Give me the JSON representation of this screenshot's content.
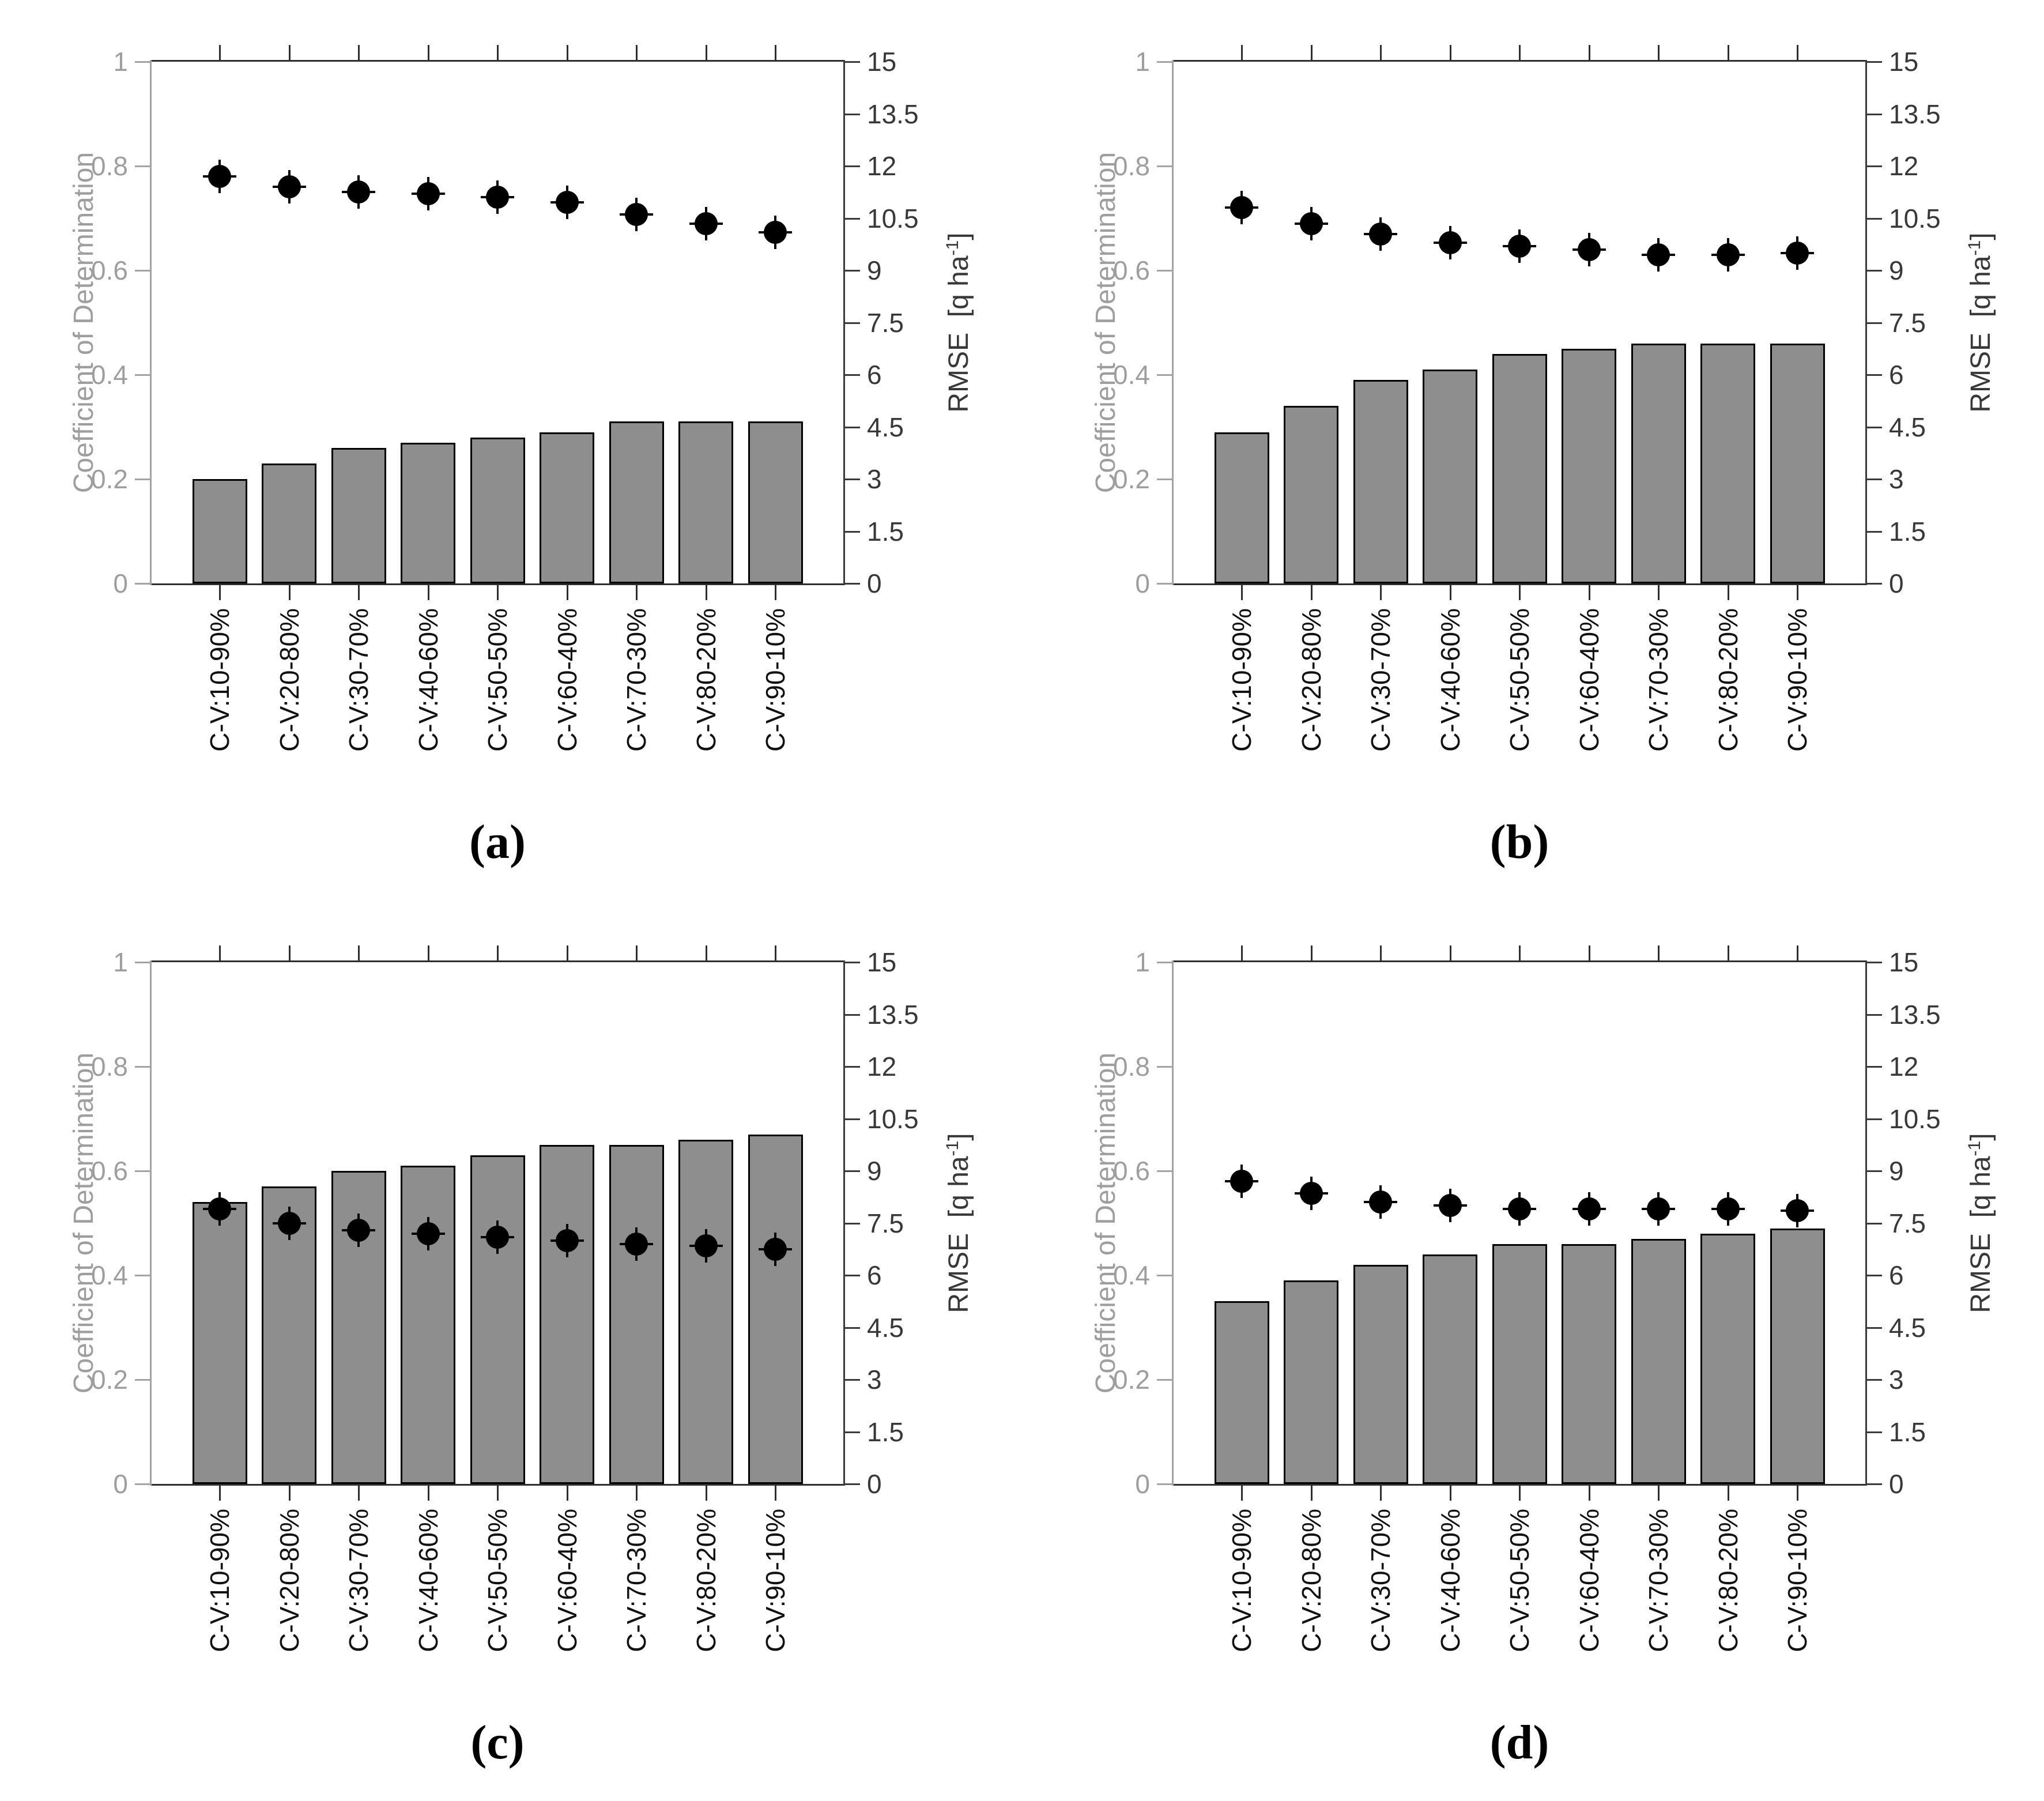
{
  "axes": {
    "left_label": "Coefficient of Determination",
    "right_label": {
      "prefix": "RMSE  [q ha",
      "sup": "-1",
      "suffix": "]"
    },
    "left_ticks": [
      "0",
      "0.2",
      "0.4",
      "0.6",
      "0.8",
      "1"
    ],
    "right_ticks": [
      "0",
      "1.5",
      "3",
      "4.5",
      "6",
      "7.5",
      "9",
      "10.5",
      "12",
      "13.5",
      "15"
    ],
    "left_ylim": [
      0,
      1
    ],
    "right_ylim": [
      0,
      15
    ],
    "grid": "off",
    "legend": "none"
  },
  "colors": {
    "bar_fill": "#8e8e8e",
    "bar_edge": "#000000",
    "marker": "#000000",
    "left_axis_color": "#a3a3a3",
    "left_text": "#9e9e9e",
    "right_axis_color": "#3a3a3a",
    "right_text": "#383838",
    "x_text": "#111111",
    "frame": "#2e2e2e"
  },
  "chart_data": [
    {
      "panel": "a",
      "caption": "(a)",
      "type": "bar",
      "categories": [
        "C-V:10-90%",
        "C-V:20-80%",
        "C-V:30-70%",
        "C-V:40-60%",
        "C-V:50-50%",
        "C-V:60-40%",
        "C-V:70-30%",
        "C-V:80-20%",
        "C-V:90-10%"
      ],
      "series": [
        {
          "name": "Coefficient of Determination",
          "type": "bar",
          "axis": "left",
          "values": [
            0.2,
            0.23,
            0.26,
            0.27,
            0.28,
            0.29,
            0.31,
            0.31,
            0.31
          ]
        },
        {
          "name": "RMSE",
          "type": "scatter",
          "axis": "right",
          "values": [
            11.7,
            11.4,
            11.25,
            11.2,
            11.1,
            10.95,
            10.6,
            10.35,
            10.1
          ]
        }
      ],
      "left_ylim": [
        0,
        1
      ],
      "right_ylim": [
        0,
        15
      ],
      "xlabel": "",
      "ylabel_left": "Coefficient of Determination",
      "ylabel_right": "RMSE  [q ha⁻¹]"
    },
    {
      "panel": "b",
      "caption": "(b)",
      "type": "bar",
      "categories": [
        "C-V:10-90%",
        "C-V:20-80%",
        "C-V:30-70%",
        "C-V:40-60%",
        "C-V:50-50%",
        "C-V:60-40%",
        "C-V:70-30%",
        "C-V:80-20%",
        "C-V:90-10%"
      ],
      "series": [
        {
          "name": "Coefficient of Determination",
          "type": "bar",
          "axis": "left",
          "values": [
            0.29,
            0.34,
            0.39,
            0.41,
            0.44,
            0.45,
            0.46,
            0.46,
            0.46
          ]
        },
        {
          "name": "RMSE",
          "type": "scatter",
          "axis": "right",
          "values": [
            10.8,
            10.35,
            10.05,
            9.8,
            9.7,
            9.6,
            9.45,
            9.45,
            9.5
          ]
        }
      ],
      "left_ylim": [
        0,
        1
      ],
      "right_ylim": [
        0,
        15
      ],
      "xlabel": "",
      "ylabel_left": "Coefficient of Determination",
      "ylabel_right": "RMSE  [q ha⁻¹]"
    },
    {
      "panel": "c",
      "caption": "(c)",
      "type": "bar",
      "categories": [
        "C-V:10-90%",
        "C-V:20-80%",
        "C-V:30-70%",
        "C-V:40-60%",
        "C-V:50-50%",
        "C-V:60-40%",
        "C-V:70-30%",
        "C-V:80-20%",
        "C-V:90-10%"
      ],
      "series": [
        {
          "name": "Coefficient of Determination",
          "type": "bar",
          "axis": "left",
          "values": [
            0.54,
            0.57,
            0.6,
            0.61,
            0.63,
            0.65,
            0.65,
            0.66,
            0.67
          ]
        },
        {
          "name": "RMSE",
          "type": "scatter",
          "axis": "right",
          "values": [
            7.9,
            7.5,
            7.3,
            7.2,
            7.1,
            7.0,
            6.9,
            6.85,
            6.75
          ]
        }
      ],
      "left_ylim": [
        0,
        1
      ],
      "right_ylim": [
        0,
        15
      ],
      "xlabel": "",
      "ylabel_left": "Coefficient of Determination",
      "ylabel_right": "RMSE  [q ha⁻¹]"
    },
    {
      "panel": "d",
      "caption": "(d)",
      "type": "bar",
      "categories": [
        "C-V:10-90%",
        "C-V:20-80%",
        "C-V:30-70%",
        "C-V:40-60%",
        "C-V:50-50%",
        "C-V:60-40%",
        "C-V:70-30%",
        "C-V:80-20%",
        "C-V:90-10%"
      ],
      "series": [
        {
          "name": "Coefficient of Determination",
          "type": "bar",
          "axis": "left",
          "values": [
            0.35,
            0.39,
            0.42,
            0.44,
            0.46,
            0.46,
            0.47,
            0.48,
            0.49
          ]
        },
        {
          "name": "RMSE",
          "type": "scatter",
          "axis": "right",
          "values": [
            8.7,
            8.35,
            8.1,
            8.0,
            7.9,
            7.9,
            7.9,
            7.9,
            7.85
          ]
        }
      ],
      "left_ylim": [
        0,
        1
      ],
      "right_ylim": [
        0,
        15
      ],
      "xlabel": "",
      "ylabel_left": "Coefficient of Determination",
      "ylabel_right": "RMSE  [q ha⁻¹]"
    }
  ]
}
